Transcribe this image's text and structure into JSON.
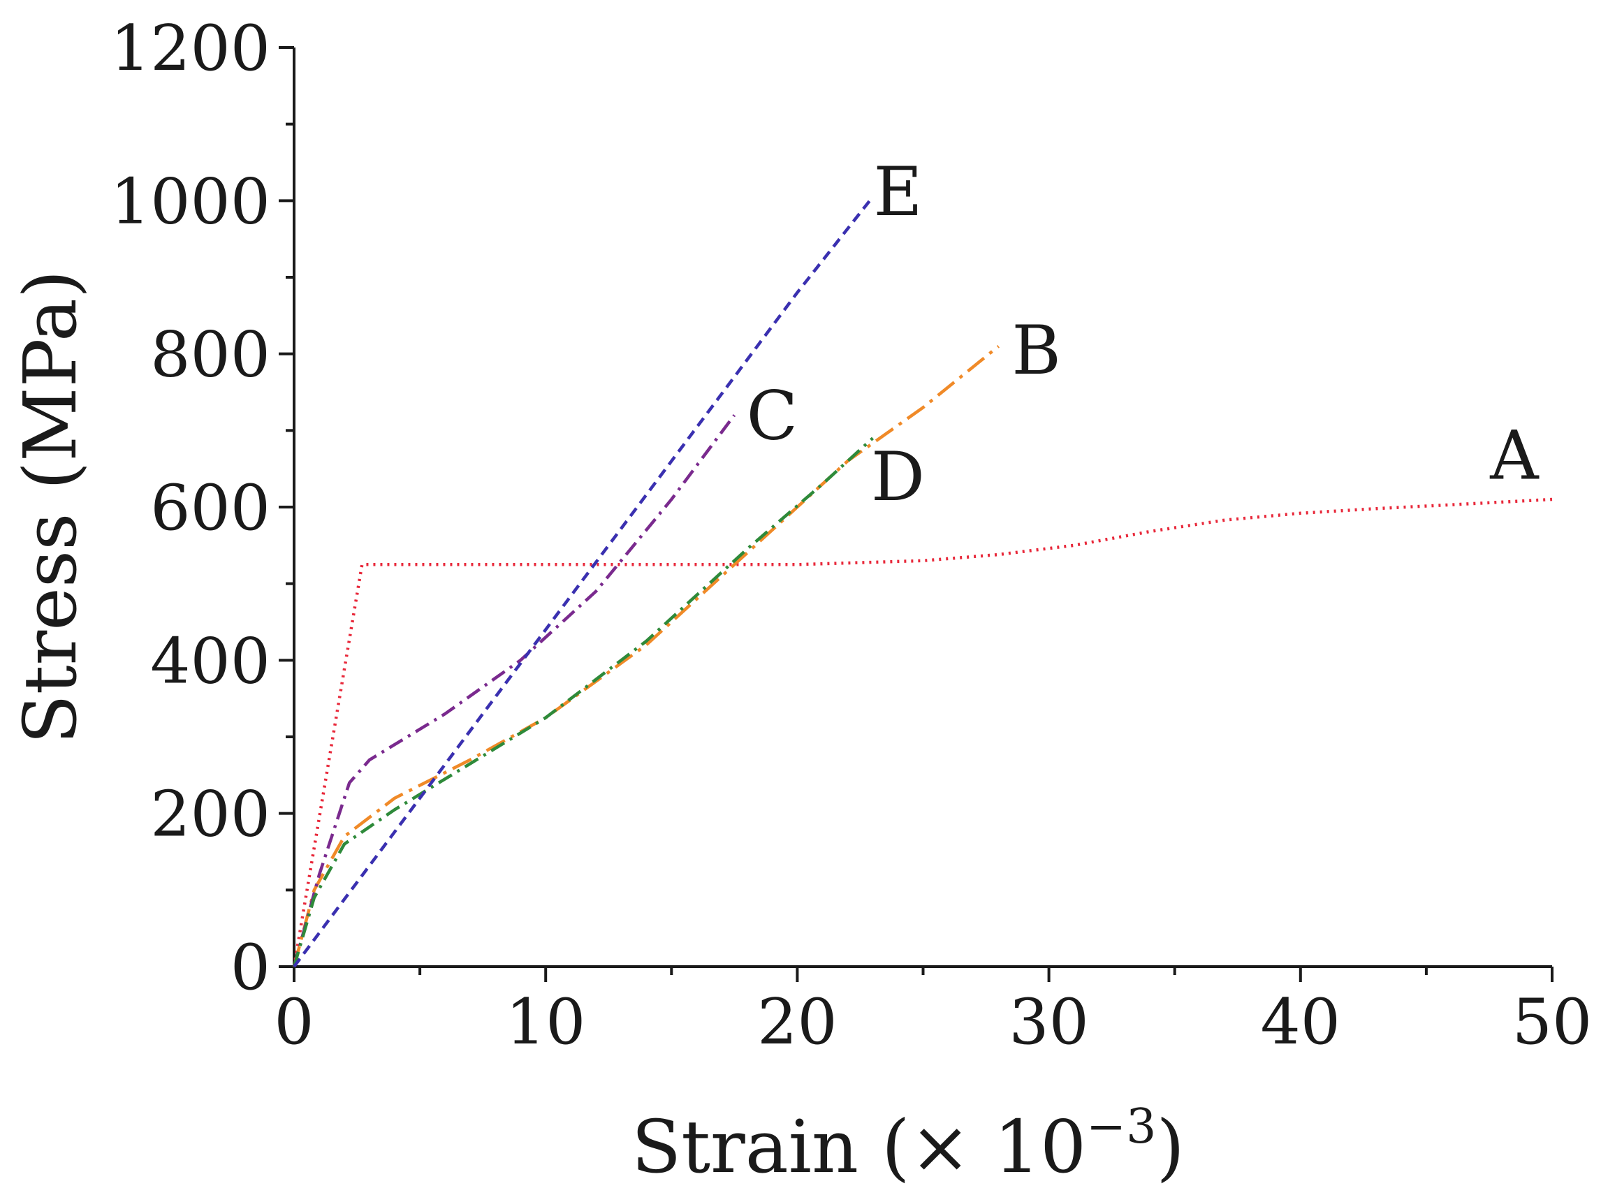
{
  "chart_data": {
    "type": "line",
    "title": "",
    "xlabel": "Strain (× 10",
    "xlabel_exponent": "−3",
    "xlabel_close": ")",
    "ylabel": "Stress (MPa)",
    "xlim": [
      0,
      50
    ],
    "ylim": [
      0,
      1200
    ],
    "x_ticks": [
      0,
      10,
      20,
      30,
      40,
      50
    ],
    "x_tick_labels": [
      "0",
      "10",
      "20",
      "30",
      "40",
      "50"
    ],
    "y_ticks": [
      0,
      200,
      400,
      600,
      800,
      1000,
      1200
    ],
    "y_tick_labels": [
      "0",
      "200",
      "400",
      "600",
      "800",
      "1000",
      "1200"
    ],
    "grid": false,
    "legend": "none",
    "series": [
      {
        "name": "A",
        "color": "#e8283a",
        "dash": "dotted",
        "points": [
          [
            0,
            0
          ],
          [
            2.7,
            525
          ],
          [
            5,
            525
          ],
          [
            10,
            525
          ],
          [
            15,
            525
          ],
          [
            20,
            525
          ],
          [
            25,
            530
          ],
          [
            28,
            538
          ],
          [
            31,
            550
          ],
          [
            34,
            568
          ],
          [
            37,
            583
          ],
          [
            40,
            592
          ],
          [
            43,
            598
          ],
          [
            46,
            603
          ],
          [
            50,
            610
          ]
        ]
      },
      {
        "name": "B",
        "color": "#f08a28",
        "dash": "long-dash-dot",
        "points": [
          [
            0,
            0
          ],
          [
            0.8,
            100
          ],
          [
            2,
            170
          ],
          [
            4,
            220
          ],
          [
            7,
            270
          ],
          [
            10,
            325
          ],
          [
            14,
            420
          ],
          [
            18,
            540
          ],
          [
            22,
            660
          ],
          [
            25,
            730
          ],
          [
            28,
            810
          ]
        ]
      },
      {
        "name": "C",
        "color": "#7a2a8e",
        "dash": "dash-dot",
        "points": [
          [
            0,
            0
          ],
          [
            1,
            120
          ],
          [
            2.2,
            240
          ],
          [
            3,
            270
          ],
          [
            6,
            330
          ],
          [
            9,
            400
          ],
          [
            12,
            490
          ],
          [
            15,
            610
          ],
          [
            17.5,
            720
          ]
        ]
      },
      {
        "name": "D",
        "color": "#2e8a3a",
        "dash": "dash-dot",
        "points": [
          [
            0,
            0
          ],
          [
            0.8,
            90
          ],
          [
            2,
            160
          ],
          [
            4,
            205
          ],
          [
            7,
            265
          ],
          [
            10,
            325
          ],
          [
            14,
            425
          ],
          [
            18,
            545
          ],
          [
            21,
            630
          ],
          [
            23,
            690
          ]
        ]
      },
      {
        "name": "E",
        "color": "#3a30b0",
        "dash": "dashed",
        "points": [
          [
            0,
            0
          ],
          [
            5,
            220
          ],
          [
            10,
            440
          ],
          [
            15,
            660
          ],
          [
            20,
            880
          ],
          [
            23,
            1005
          ]
        ]
      }
    ],
    "annotations": [
      {
        "text": "A",
        "x": 48.5,
        "y": 668
      },
      {
        "text": "B",
        "x": 29.5,
        "y": 805
      },
      {
        "text": "C",
        "x": 19,
        "y": 720
      },
      {
        "text": "D",
        "x": 24,
        "y": 640
      },
      {
        "text": "E",
        "x": 24,
        "y": 1012
      }
    ]
  }
}
